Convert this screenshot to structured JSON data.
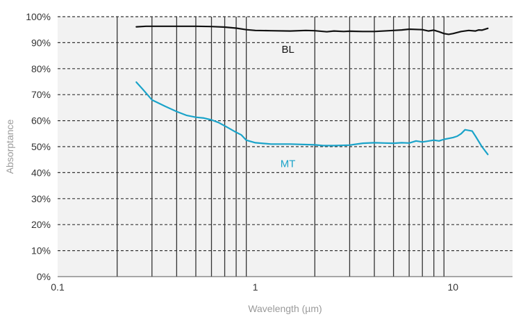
{
  "chart_data": {
    "type": "line",
    "xlabel": "Wavelength (µm)",
    "ylabel": "Absorptance",
    "x_scale": "log",
    "xlim": [
      0.1,
      20
    ],
    "ylim": [
      0,
      100
    ],
    "x_major_ticks": [
      0.1,
      1,
      10
    ],
    "x_tick_labels": [
      "0.1",
      "1",
      "10"
    ],
    "x_minor_gridlines": [
      0.2,
      0.3,
      0.4,
      0.5,
      0.6,
      0.7,
      0.8,
      0.9,
      2,
      3,
      4,
      5,
      6,
      7,
      8,
      9
    ],
    "y_ticks": [
      0,
      10,
      20,
      30,
      40,
      50,
      60,
      70,
      80,
      90,
      100
    ],
    "y_tick_labels": [
      "0%",
      "10%",
      "20%",
      "30%",
      "40%",
      "50%",
      "60%",
      "70%",
      "80%",
      "90%",
      "100%"
    ],
    "grid": "on",
    "legend": "none",
    "series": [
      {
        "name": "BL",
        "color": "#111111",
        "points": [
          [
            0.25,
            96.1
          ],
          [
            0.28,
            96.3
          ],
          [
            0.3,
            96.3
          ],
          [
            0.35,
            96.3
          ],
          [
            0.4,
            96.3
          ],
          [
            0.5,
            96.3
          ],
          [
            0.6,
            96.2
          ],
          [
            0.7,
            96.0
          ],
          [
            0.8,
            95.6
          ],
          [
            0.9,
            95.0
          ],
          [
            1.0,
            94.7
          ],
          [
            1.2,
            94.6
          ],
          [
            1.5,
            94.5
          ],
          [
            1.8,
            94.7
          ],
          [
            2.0,
            94.6
          ],
          [
            2.3,
            94.2
          ],
          [
            2.5,
            94.5
          ],
          [
            2.8,
            94.3
          ],
          [
            3.0,
            94.4
          ],
          [
            3.5,
            94.3
          ],
          [
            4.0,
            94.3
          ],
          [
            5.0,
            94.7
          ],
          [
            5.5,
            94.9
          ],
          [
            6.0,
            95.2
          ],
          [
            7.0,
            95.0
          ],
          [
            7.5,
            94.5
          ],
          [
            8.0,
            94.8
          ],
          [
            8.5,
            94.2
          ],
          [
            9.0,
            93.5
          ],
          [
            9.5,
            93.2
          ],
          [
            10.0,
            93.5
          ],
          [
            11.0,
            94.3
          ],
          [
            12.0,
            94.7
          ],
          [
            13.0,
            94.5
          ],
          [
            13.5,
            94.9
          ],
          [
            14.0,
            94.8
          ],
          [
            15.0,
            95.5
          ]
        ]
      },
      {
        "name": "MT",
        "color": "#1aa3c9",
        "points": [
          [
            0.25,
            74.8
          ],
          [
            0.27,
            72.0
          ],
          [
            0.3,
            68.0
          ],
          [
            0.35,
            65.5
          ],
          [
            0.4,
            63.5
          ],
          [
            0.45,
            62.0
          ],
          [
            0.5,
            61.3
          ],
          [
            0.55,
            61.0
          ],
          [
            0.6,
            60.3
          ],
          [
            0.65,
            59.3
          ],
          [
            0.7,
            58.0
          ],
          [
            0.8,
            55.5
          ],
          [
            0.85,
            54.5
          ],
          [
            0.9,
            52.5
          ],
          [
            1.0,
            51.5
          ],
          [
            1.2,
            51.0
          ],
          [
            1.5,
            51.0
          ],
          [
            2.0,
            50.7
          ],
          [
            2.2,
            50.4
          ],
          [
            2.5,
            50.4
          ],
          [
            3.0,
            50.6
          ],
          [
            3.5,
            51.3
          ],
          [
            4.0,
            51.5
          ],
          [
            4.5,
            51.4
          ],
          [
            5.0,
            51.3
          ],
          [
            5.5,
            51.5
          ],
          [
            6.0,
            51.4
          ],
          [
            6.5,
            52.2
          ],
          [
            7.0,
            51.8
          ],
          [
            8.0,
            52.5
          ],
          [
            8.5,
            52.2
          ],
          [
            9.0,
            52.8
          ],
          [
            10.0,
            53.5
          ],
          [
            10.5,
            54.0
          ],
          [
            11.0,
            55.0
          ],
          [
            11.5,
            56.5
          ],
          [
            12.5,
            56.0
          ],
          [
            13.0,
            54.0
          ],
          [
            14.0,
            50.0
          ],
          [
            15.0,
            47.0
          ]
        ]
      }
    ],
    "annotations": [
      {
        "text": "BL",
        "x": 0.9,
        "y": 87.5,
        "color": "#111111"
      },
      {
        "text": "MT",
        "x": 0.9,
        "y": 43.5,
        "color": "#1aa3c9"
      }
    ]
  }
}
